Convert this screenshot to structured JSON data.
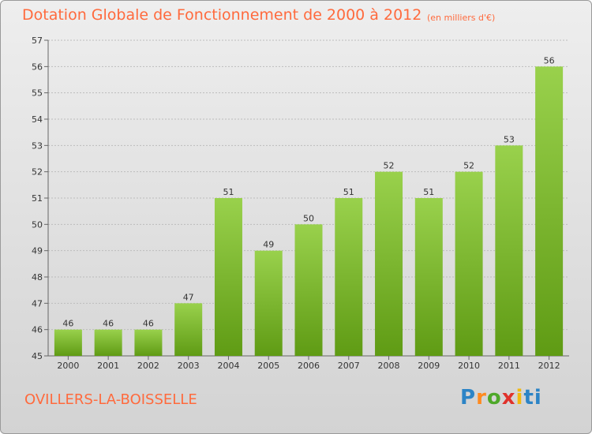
{
  "title": "Dotation Globale de Fonctionnement de 2000 à 2012",
  "subtitle": "(en milliers d'€)",
  "commune": "OVILLERS-LA-BOISSELLE",
  "logo_text": "Proxiti",
  "colors": {
    "bar_light": "#99d14c",
    "bar_dark": "#5f9b14",
    "title": "#ff6a3d",
    "grid": "#bcbcbc"
  },
  "chart_data": {
    "type": "bar",
    "categories": [
      "2000",
      "2001",
      "2002",
      "2003",
      "2004",
      "2005",
      "2006",
      "2007",
      "2008",
      "2009",
      "2010",
      "2011",
      "2012"
    ],
    "values": [
      46,
      46,
      46,
      47,
      51,
      49,
      50,
      51,
      52,
      51,
      52,
      53,
      56
    ],
    "ylim": [
      45,
      57
    ],
    "yticks": [
      45,
      46,
      47,
      48,
      49,
      50,
      51,
      52,
      53,
      54,
      55,
      56,
      57
    ],
    "grid": true
  }
}
